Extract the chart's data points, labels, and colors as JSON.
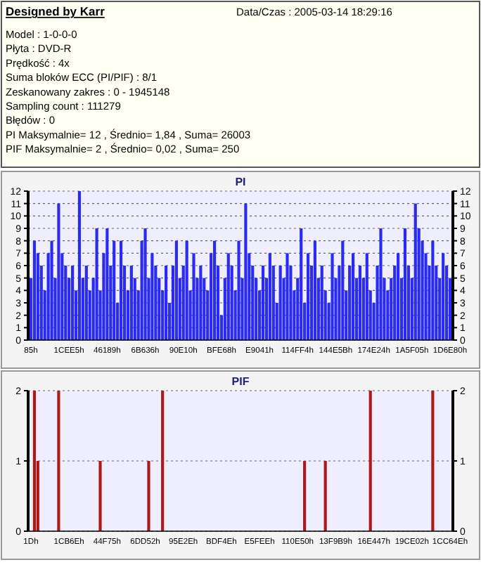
{
  "chart_data": [
    {
      "type": "other",
      "title": "Designed by Karr",
      "annotations": [
        "Data/Czas : 2005-03-14 18:29:16",
        "Model : 1-0-0-0",
        "Płyta : DVD-R",
        "Prędkość : 4x",
        "Suma bloków ECC (PI/PIF) : 8/1",
        "Zeskanowany zakres : 0 - 1945148",
        "Sampling count : 111279",
        "Błędów : 0",
        "PI Maksymalnie= 12 , Średnio= 1,84 , Suma= 26003",
        "PIF Maksymalnie= 2 , Średnio= 0,02 , Suma= 250"
      ]
    },
    {
      "type": "bar",
      "title": "PI",
      "color": "#2a2af2",
      "grid": "y",
      "ylim": [
        0,
        12
      ],
      "yticks": [
        0,
        1,
        2,
        3,
        4,
        5,
        6,
        7,
        8,
        9,
        10,
        11,
        12
      ],
      "y2lim": [
        0,
        12
      ],
      "y2ticks": [
        0,
        1,
        2,
        3,
        4,
        5,
        6,
        7,
        8,
        9,
        10,
        11,
        12
      ],
      "categories": [
        "85h",
        null,
        null,
        null,
        null,
        null,
        null,
        null,
        null,
        null,
        null,
        "1CEE5h",
        null,
        null,
        null,
        null,
        null,
        null,
        null,
        null,
        null,
        null,
        "46189h",
        null,
        null,
        null,
        null,
        null,
        null,
        null,
        null,
        null,
        null,
        "6B636h",
        null,
        null,
        null,
        null,
        null,
        null,
        null,
        null,
        null,
        null,
        "90E10h",
        null,
        null,
        null,
        null,
        null,
        null,
        null,
        null,
        null,
        null,
        "BFE68h",
        null,
        null,
        null,
        null,
        null,
        null,
        null,
        null,
        null,
        null,
        "E9041h",
        null,
        null,
        null,
        null,
        null,
        null,
        null,
        null,
        null,
        null,
        "114FF4h",
        null,
        null,
        null,
        null,
        null,
        null,
        null,
        null,
        null,
        null,
        "144E5Bh",
        null,
        null,
        null,
        null,
        null,
        null,
        null,
        null,
        null,
        null,
        "174E24h",
        null,
        null,
        null,
        null,
        null,
        null,
        null,
        null,
        null,
        null,
        "1A5F05h",
        null,
        null,
        null,
        null,
        null,
        null,
        null,
        null,
        null,
        null,
        "1D6E80h"
      ],
      "values": [
        5,
        8,
        7,
        6,
        4,
        7,
        8,
        5,
        11,
        7,
        6,
        5,
        6,
        4,
        12,
        5,
        6,
        4,
        5,
        9,
        4,
        7,
        9,
        6,
        8,
        3,
        8,
        6,
        4,
        6,
        5,
        4,
        8,
        9,
        5,
        7,
        6,
        5,
        4,
        6,
        3,
        6,
        8,
        5,
        6,
        8,
        4,
        7,
        5,
        6,
        5,
        4,
        7,
        8,
        6,
        2,
        5,
        7,
        6,
        4,
        8,
        5,
        11,
        7,
        6,
        5,
        4,
        6,
        5,
        7,
        6,
        3,
        6,
        5,
        7,
        6,
        4,
        5,
        9,
        3,
        7,
        6,
        8,
        5,
        6,
        4,
        3,
        7,
        5,
        6,
        8,
        4,
        6,
        7,
        5,
        6,
        5,
        7,
        4,
        3,
        6,
        9,
        5,
        4,
        5,
        6,
        7,
        5,
        9,
        6,
        5,
        11,
        9,
        8,
        7,
        6,
        8,
        6,
        5,
        7,
        6,
        5
      ]
    },
    {
      "type": "bar",
      "title": "PIF",
      "color": "#b01818",
      "grid": "y",
      "ylim": [
        0,
        2
      ],
      "yticks": [
        0,
        1,
        2
      ],
      "y2lim": [
        0,
        2
      ],
      "y2ticks": [
        0,
        1,
        2
      ],
      "categories": [
        "1Dh",
        null,
        null,
        null,
        null,
        null,
        null,
        null,
        null,
        null,
        null,
        "1CB6Eh",
        null,
        null,
        null,
        null,
        null,
        null,
        null,
        null,
        null,
        null,
        "44F75h",
        null,
        null,
        null,
        null,
        null,
        null,
        null,
        null,
        null,
        null,
        "6DD52h",
        null,
        null,
        null,
        null,
        null,
        null,
        null,
        null,
        null,
        null,
        "95E2Eh",
        null,
        null,
        null,
        null,
        null,
        null,
        null,
        null,
        null,
        null,
        "BDF4Eh",
        null,
        null,
        null,
        null,
        null,
        null,
        null,
        null,
        null,
        null,
        "E5FEEh",
        null,
        null,
        null,
        null,
        null,
        null,
        null,
        null,
        null,
        null,
        "110E50h",
        null,
        null,
        null,
        null,
        null,
        null,
        null,
        null,
        null,
        null,
        "13F9B9h",
        null,
        null,
        null,
        null,
        null,
        null,
        null,
        null,
        null,
        null,
        "16E447h",
        null,
        null,
        null,
        null,
        null,
        null,
        null,
        null,
        null,
        null,
        "19CE02h",
        null,
        null,
        null,
        null,
        null,
        null,
        null,
        null,
        null,
        null,
        "1CC64Eh"
      ],
      "values": [
        0,
        2,
        1,
        0,
        0,
        0,
        0,
        0,
        2,
        0,
        0,
        0,
        0,
        0,
        0,
        0,
        0,
        0,
        0,
        0,
        1,
        0,
        0,
        0,
        0,
        0,
        0,
        0,
        0,
        0,
        0,
        0,
        0,
        0,
        1,
        0,
        0,
        0,
        2,
        0,
        0,
        0,
        0,
        0,
        0,
        0,
        0,
        0,
        0,
        0,
        0,
        0,
        0,
        0,
        0,
        0,
        0,
        0,
        0,
        0,
        0,
        0,
        0,
        0,
        0,
        0,
        0,
        0,
        0,
        0,
        0,
        0,
        0,
        0,
        0,
        0,
        0,
        0,
        0,
        1,
        0,
        0,
        0,
        0,
        0,
        1,
        0,
        0,
        0,
        0,
        0,
        0,
        0,
        0,
        0,
        0,
        0,
        0,
        2,
        0,
        0,
        0,
        0,
        0,
        0,
        0,
        0,
        0,
        0,
        0,
        0,
        0,
        0,
        0,
        0,
        0,
        2,
        0,
        0,
        0,
        0,
        0
      ]
    }
  ]
}
